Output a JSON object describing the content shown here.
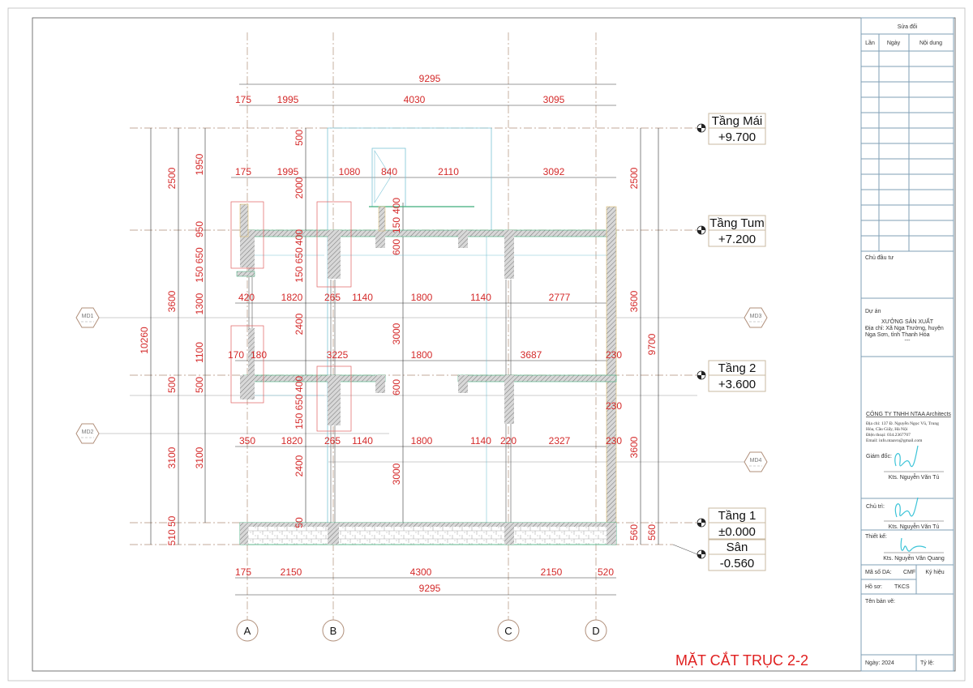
{
  "drawing": {
    "title": "MẶT CẮT TRỤC 2-2",
    "axes": [
      "A",
      "B",
      "C",
      "D"
    ],
    "levels": [
      {
        "name": "Tầng Mái",
        "elevation": "+9.700"
      },
      {
        "name": "Tầng Tum",
        "elevation": "+7.200"
      },
      {
        "name": "Tầng 2",
        "elevation": "+3.600"
      },
      {
        "name": "Tầng 1",
        "elevation": "±0.000"
      },
      {
        "name": "Sân",
        "elevation": "-0.560"
      }
    ],
    "markers": [
      "MD1",
      "MD2",
      "MD3",
      "MD4"
    ],
    "dimensions_horizontal": [
      "9295",
      "175",
      "1995",
      "4030",
      "3095",
      "175",
      "1995",
      "1080",
      "840",
      "2110",
      "3092",
      "420",
      "1820",
      "265",
      "1140",
      "1800",
      "1140",
      "2777",
      "170",
      "180",
      "3225",
      "1800",
      "3687",
      "230",
      "350",
      "1820",
      "265",
      "1140",
      "1800",
      "1140",
      "220",
      "2327",
      "230",
      "175",
      "2150",
      "4300",
      "2150",
      "520",
      "9295"
    ],
    "dimensions_vertical": [
      "10260",
      "2500",
      "3600",
      "500",
      "3100",
      "510 50",
      "1950",
      "950",
      "150 650",
      "1300",
      "1100",
      "500",
      "3100",
      "500",
      "2000",
      "400",
      "150 650",
      "2400",
      "400",
      "150 650",
      "2400",
      "50",
      "400",
      "150",
      "600",
      "3000",
      "600",
      "3000",
      "2500",
      "3600",
      "230",
      "3600",
      "560",
      "9700",
      "560"
    ],
    "colors": {
      "dimension": "#d42a2a",
      "grid": "#b08f7a",
      "titleblock": "#7f9fb5",
      "signature": "#3cc4d8"
    }
  },
  "titleblock": {
    "revisions_title": "Sửa đổi",
    "rev_cols": [
      "Lần",
      "Ngày",
      "Nội dung"
    ],
    "owner_label": "Chủ đầu tư",
    "project_label": "Dự án",
    "project_name": "XƯỞNG SẢN XUẤT",
    "project_address_1": "Địa chỉ: Xã Nga Trường, huyện",
    "project_address_2": "Nga Sơn, tỉnh Thanh Hóa",
    "project_dash": "---",
    "company": "CÔNG TY TNHH NTAA Architects",
    "company_addr_1": "Địa chỉ: 137 Đ. Nguyễn Ngọc Vũ, Trung",
    "company_addr_2": "Hòa, Cầu Giấy, Hà Nội",
    "company_phone": "Điện thoại: 034.2367707",
    "company_email": "Email: info.ntaavn@gmail.com",
    "director_label": "Giám đốc:",
    "director_name": "Kts. Nguyễn Văn Tú",
    "lead_label": "Chủ trì:",
    "lead_name": "Kts. Nguyễn Văn Tú",
    "designer_label": "Thiết kế:",
    "designer_name": "Kts. Nguyễn Văn Quang",
    "project_code_label": "Mã số DA:",
    "project_code": "CMF",
    "symbol_label": "Ký hiệu",
    "file_label": "Hồ sơ:",
    "file_value": "TKCS",
    "drawing_name_label": "Tên bản vẽ:",
    "date_label": "Ngày: 2024",
    "scale_label": "Tỷ lệ:"
  }
}
